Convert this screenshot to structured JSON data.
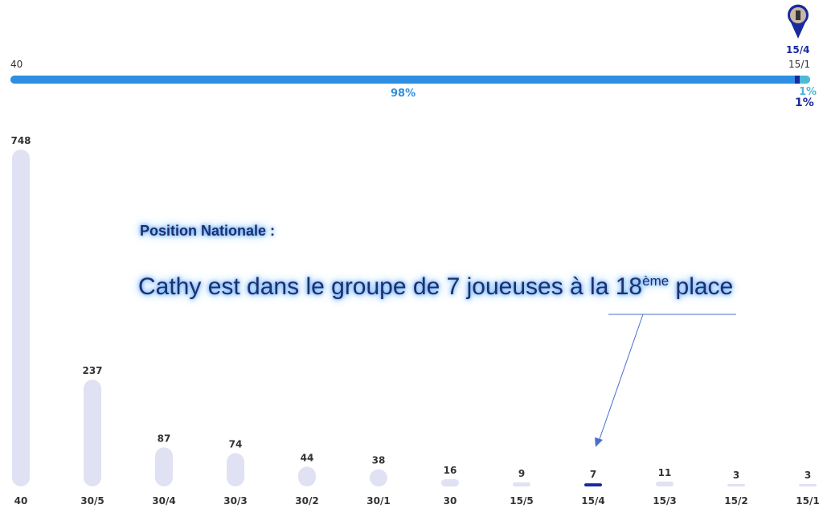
{
  "progress": {
    "left_label": "40",
    "right_label": "15/1",
    "current_label": "15/4",
    "segments": [
      {
        "label": "98%",
        "value": 98,
        "color": "#2e8fe0"
      },
      {
        "label": "1%",
        "value": 1,
        "color": "#1a2a9c"
      },
      {
        "label": "1%",
        "value": 1,
        "color": "#4fb8d8"
      }
    ],
    "marker_icon": "player-avatar-pin-icon"
  },
  "annotation": {
    "heading": "Position Nationale :",
    "text_before": "Cathy est dans le groupe de 7 joueuses à la 18",
    "superscript": "ème",
    "text_after": " place"
  },
  "chart_data": {
    "type": "bar",
    "categories": [
      "40",
      "30/5",
      "30/4",
      "30/3",
      "30/2",
      "30/1",
      "30",
      "15/5",
      "15/4",
      "15/3",
      "15/2",
      "15/1"
    ],
    "values": [
      748,
      237,
      87,
      74,
      44,
      38,
      16,
      9,
      7,
      11,
      3,
      3
    ],
    "highlight": "15/4",
    "colors": {
      "bar": "#e1e1f4",
      "highlight": "#1a2a9c"
    },
    "grid": false
  }
}
